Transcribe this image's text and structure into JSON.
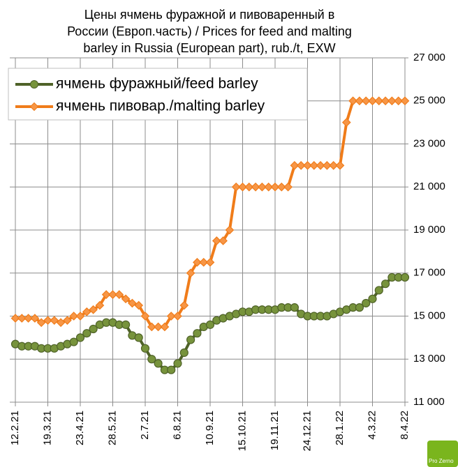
{
  "chart_data": {
    "type": "line",
    "title": [
      "Цены ячмень фуражной и пивоваренный в",
      "России (Европ.часть) / Prices for feed and malting",
      "barley in Russia (European part), rub./t, EXW"
    ],
    "categories": [
      "12.2.21",
      null,
      null,
      null,
      null,
      "19.3.21",
      null,
      null,
      null,
      null,
      "23.4.21",
      null,
      null,
      null,
      null,
      "28.5.21",
      null,
      null,
      null,
      null,
      "2.7.21",
      null,
      null,
      null,
      null,
      "6.8.21",
      null,
      null,
      null,
      null,
      "10.9.21",
      null,
      null,
      null,
      null,
      "15.10.21",
      null,
      null,
      null,
      null,
      "19.11.21",
      null,
      null,
      null,
      null,
      "24.12.21",
      null,
      null,
      null,
      null,
      "28.1.22",
      null,
      null,
      null,
      null,
      "4.3.22",
      null,
      null,
      null,
      null,
      "8.4.22"
    ],
    "series": [
      {
        "name": "ячмень фуражный/feed barley",
        "color": "#4f6228",
        "marker_color": "#77933c",
        "values": [
          13700,
          13600,
          13600,
          13600,
          13500,
          13500,
          13500,
          13600,
          13700,
          13800,
          14000,
          14200,
          14400,
          14600,
          14700,
          14700,
          14600,
          14600,
          14100,
          14000,
          13500,
          13000,
          12800,
          12500,
          12500,
          12800,
          13300,
          13900,
          14200,
          14500,
          14600,
          14800,
          14900,
          15000,
          15100,
          15200,
          15200,
          15300,
          15300,
          15300,
          15300,
          15400,
          15400,
          15400,
          15100,
          15000,
          15000,
          15000,
          15000,
          15100,
          15200,
          15300,
          15400,
          15400,
          15600,
          15800,
          16200,
          16500,
          16800,
          16800,
          16800
        ]
      },
      {
        "name": "ячмень пивовар./malting barley",
        "color": "#f07c1a",
        "marker_color": "#f79646",
        "values": [
          14900,
          14900,
          14900,
          14900,
          14700,
          14800,
          14800,
          14700,
          14800,
          15000,
          15000,
          15200,
          15300,
          15500,
          16000,
          16000,
          16000,
          15800,
          15600,
          15500,
          15000,
          14500,
          14500,
          14500,
          15000,
          15000,
          15500,
          17000,
          17500,
          17500,
          17500,
          18500,
          18500,
          19000,
          21000,
          21000,
          21000,
          21000,
          21000,
          21000,
          21000,
          21000,
          21000,
          22000,
          22000,
          22000,
          22000,
          22000,
          22000,
          22000,
          22000,
          24000,
          25000,
          25000,
          25000,
          25000,
          25000,
          25000,
          25000,
          25000,
          25000
        ]
      }
    ],
    "ylim": [
      11000,
      27000
    ],
    "yticks": [
      {
        "value": 11000,
        "label": "11 000"
      },
      {
        "value": 13000,
        "label": "13 000"
      },
      {
        "value": 15000,
        "label": "15 000"
      },
      {
        "value": 17000,
        "label": "17 000"
      },
      {
        "value": 19000,
        "label": "19 000"
      },
      {
        "value": 21000,
        "label": "21 000"
      },
      {
        "value": 23000,
        "label": "23 000"
      },
      {
        "value": 25000,
        "label": "25 000"
      },
      {
        "value": 27000,
        "label": "27 000"
      }
    ],
    "grid": true,
    "legend": "upper left",
    "logo": "Pro Zerno"
  }
}
